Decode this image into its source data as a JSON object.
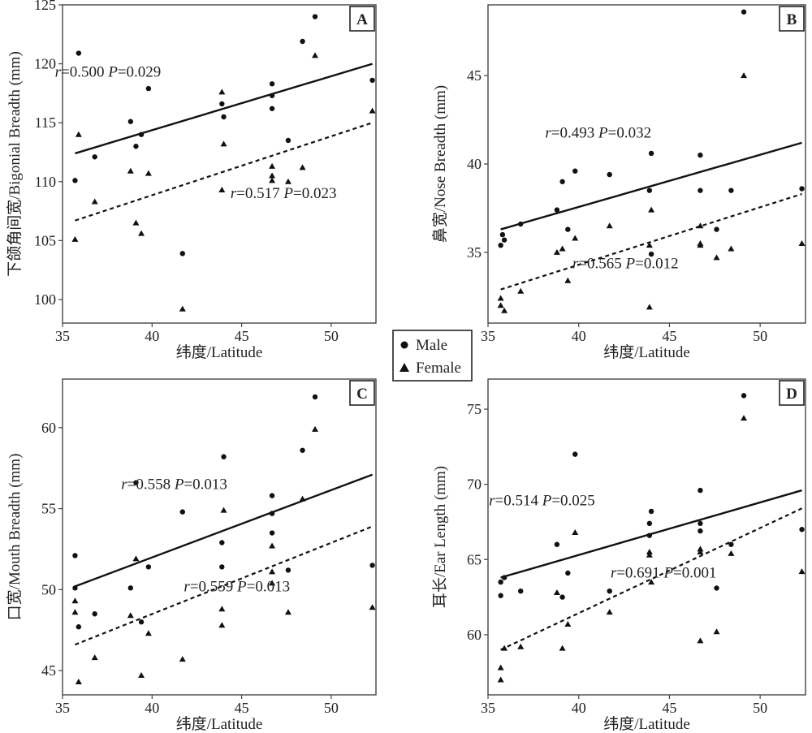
{
  "figure": {
    "legend": {
      "entries": [
        {
          "label": "Male",
          "marker": "circle"
        },
        {
          "label": "Female",
          "marker": "triangle"
        }
      ]
    }
  },
  "chart_data": [
    {
      "panel": "A",
      "type": "scatter",
      "xlabel": "纬度/Latitude",
      "ylabel": "下颌角间宽/Bigonial Breadth (mm)",
      "xlim": [
        35,
        52.5
      ],
      "ylim": [
        98,
        125
      ],
      "xticks": [
        35,
        40,
        45,
        50
      ],
      "yticks": [
        100,
        105,
        110,
        115,
        120,
        125
      ],
      "annotations": [
        {
          "series": "Male",
          "r": "0.500",
          "P": "0.029",
          "at_x": 40.5,
          "at_y": 118.9
        },
        {
          "series": "Female",
          "r": "0.517",
          "P": "0.023",
          "at_x": 50.3,
          "at_y": 108.6
        }
      ],
      "series": [
        {
          "name": "Male",
          "marker": "circle",
          "fit": {
            "x": [
              35.7,
              52.3
            ],
            "y": [
              112.4,
              120.0
            ],
            "style": "solid"
          },
          "points": [
            [
              35.7,
              110.1
            ],
            [
              35.9,
              120.9
            ],
            [
              36.8,
              112.1
            ],
            [
              38.8,
              115.1
            ],
            [
              39.1,
              113.0
            ],
            [
              39.4,
              114.0
            ],
            [
              39.8,
              117.9
            ],
            [
              41.7,
              103.9
            ],
            [
              43.9,
              116.6
            ],
            [
              44.0,
              115.5
            ],
            [
              46.7,
              118.3
            ],
            [
              46.7,
              117.3
            ],
            [
              46.7,
              116.2
            ],
            [
              47.6,
              113.5
            ],
            [
              48.4,
              121.9
            ],
            [
              49.1,
              124.0
            ],
            [
              52.3,
              118.6
            ]
          ]
        },
        {
          "name": "Female",
          "marker": "triangle",
          "fit": {
            "x": [
              35.7,
              52.3
            ],
            "y": [
              106.7,
              115.0
            ],
            "style": "dashed"
          },
          "points": [
            [
              35.7,
              105.1
            ],
            [
              35.9,
              114.0
            ],
            [
              36.8,
              108.3
            ],
            [
              38.8,
              110.9
            ],
            [
              39.1,
              106.5
            ],
            [
              39.4,
              105.6
            ],
            [
              39.8,
              110.7
            ],
            [
              41.7,
              99.2
            ],
            [
              43.9,
              117.6
            ],
            [
              43.9,
              109.3
            ],
            [
              44.0,
              113.2
            ],
            [
              46.7,
              111.3
            ],
            [
              46.7,
              110.5
            ],
            [
              46.7,
              110.1
            ],
            [
              47.6,
              110.0
            ],
            [
              48.4,
              111.2
            ],
            [
              49.1,
              120.7
            ],
            [
              52.3,
              116.0
            ]
          ]
        }
      ]
    },
    {
      "panel": "B",
      "type": "scatter",
      "xlabel": "纬度/Latitude",
      "ylabel": "鼻宽/Nose Breadth (mm)",
      "xlim": [
        35,
        52.5
      ],
      "ylim": [
        31,
        49
      ],
      "xticks": [
        35,
        40,
        45,
        50
      ],
      "yticks": [
        35,
        40,
        45
      ],
      "annotations": [
        {
          "series": "Male",
          "r": "0.493",
          "P": "0.032",
          "at_x": 44.0,
          "at_y": 41.5
        },
        {
          "series": "Female",
          "r": "0.565",
          "P": "0.012",
          "at_x": 45.5,
          "at_y": 34.1
        }
      ],
      "series": [
        {
          "name": "Male",
          "marker": "circle",
          "fit": {
            "x": [
              35.7,
              52.3
            ],
            "y": [
              36.3,
              41.2
            ],
            "style": "solid"
          },
          "points": [
            [
              35.7,
              35.4
            ],
            [
              35.8,
              36.0
            ],
            [
              35.9,
              35.7
            ],
            [
              36.8,
              36.6
            ],
            [
              38.8,
              37.4
            ],
            [
              39.1,
              39.0
            ],
            [
              39.4,
              36.3
            ],
            [
              39.8,
              39.6
            ],
            [
              41.7,
              39.4
            ],
            [
              43.9,
              38.5
            ],
            [
              44.0,
              34.9
            ],
            [
              44.0,
              40.6
            ],
            [
              46.7,
              40.5
            ],
            [
              46.7,
              38.5
            ],
            [
              47.6,
              36.3
            ],
            [
              48.4,
              38.5
            ],
            [
              49.1,
              48.6
            ],
            [
              52.3,
              38.6
            ]
          ]
        },
        {
          "name": "Female",
          "marker": "triangle",
          "fit": {
            "x": [
              35.7,
              52.3
            ],
            "y": [
              32.9,
              38.3
            ],
            "style": "dashed"
          },
          "points": [
            [
              35.7,
              32.4
            ],
            [
              35.7,
              32.0
            ],
            [
              35.9,
              31.7
            ],
            [
              36.8,
              32.8
            ],
            [
              38.8,
              35.0
            ],
            [
              39.1,
              35.2
            ],
            [
              39.4,
              33.4
            ],
            [
              39.8,
              35.8
            ],
            [
              41.7,
              36.5
            ],
            [
              43.9,
              35.4
            ],
            [
              43.9,
              31.9
            ],
            [
              44.0,
              37.4
            ],
            [
              46.7,
              36.5
            ],
            [
              46.7,
              35.5
            ],
            [
              46.7,
              35.4
            ],
            [
              47.6,
              34.7
            ],
            [
              48.4,
              35.2
            ],
            [
              49.1,
              45.0
            ],
            [
              52.3,
              35.5
            ]
          ]
        }
      ]
    },
    {
      "panel": "C",
      "type": "scatter",
      "xlabel": "纬度/Latitude",
      "ylabel": "口宽/Mouth Breadth (mm)",
      "xlim": [
        35,
        52.5
      ],
      "ylim": [
        43.5,
        63
      ],
      "xticks": [
        35,
        40,
        45,
        50
      ],
      "yticks": [
        45,
        50,
        55,
        60
      ],
      "annotations": [
        {
          "series": "Male",
          "r": "0.558",
          "P": "0.013",
          "at_x": 44.2,
          "at_y": 56.2
        },
        {
          "series": "Female",
          "r": "0.559",
          "P": "0.013",
          "at_x": 47.7,
          "at_y": 49.9
        }
      ],
      "series": [
        {
          "name": "Male",
          "marker": "circle",
          "fit": {
            "x": [
              35.7,
              52.3
            ],
            "y": [
              50.2,
              57.1
            ],
            "style": "solid"
          },
          "points": [
            [
              35.7,
              52.1
            ],
            [
              35.7,
              50.1
            ],
            [
              35.9,
              47.7
            ],
            [
              36.8,
              48.5
            ],
            [
              38.8,
              50.1
            ],
            [
              39.1,
              56.6
            ],
            [
              39.4,
              48.0
            ],
            [
              39.8,
              51.4
            ],
            [
              41.7,
              54.8
            ],
            [
              43.9,
              52.9
            ],
            [
              43.9,
              51.4
            ],
            [
              44.0,
              58.2
            ],
            [
              46.7,
              55.8
            ],
            [
              46.7,
              54.7
            ],
            [
              46.7,
              53.5
            ],
            [
              47.6,
              51.2
            ],
            [
              48.4,
              58.6
            ],
            [
              49.1,
              61.9
            ],
            [
              52.3,
              51.5
            ]
          ]
        },
        {
          "name": "Female",
          "marker": "triangle",
          "fit": {
            "x": [
              35.7,
              52.3
            ],
            "y": [
              46.6,
              53.9
            ],
            "style": "dashed"
          },
          "points": [
            [
              35.7,
              49.3
            ],
            [
              35.7,
              48.6
            ],
            [
              35.9,
              44.3
            ],
            [
              36.8,
              45.8
            ],
            [
              38.8,
              48.4
            ],
            [
              39.1,
              51.9
            ],
            [
              39.4,
              44.7
            ],
            [
              39.8,
              47.3
            ],
            [
              41.7,
              45.7
            ],
            [
              43.9,
              48.8
            ],
            [
              43.9,
              47.8
            ],
            [
              44.0,
              54.9
            ],
            [
              46.7,
              52.7
            ],
            [
              46.7,
              51.1
            ],
            [
              46.7,
              50.4
            ],
            [
              47.6,
              48.6
            ],
            [
              48.4,
              55.6
            ],
            [
              49.1,
              59.9
            ],
            [
              52.3,
              48.9
            ]
          ]
        }
      ]
    },
    {
      "panel": "D",
      "type": "scatter",
      "xlabel": "纬度/Latitude",
      "ylabel": "耳长/Ear Length (mm)",
      "xlim": [
        35,
        52.5
      ],
      "ylim": [
        56,
        77
      ],
      "xticks": [
        35,
        40,
        45,
        50
      ],
      "yticks": [
        60,
        65,
        70,
        75
      ],
      "annotations": [
        {
          "series": "Male",
          "r": "0.514",
          "P": "0.025",
          "at_x": 40.9,
          "at_y": 68.6
        },
        {
          "series": "Female",
          "r": "0.691",
          "P": "0.001",
          "at_x": 47.6,
          "at_y": 63.8
        }
      ],
      "series": [
        {
          "name": "Male",
          "marker": "circle",
          "fit": {
            "x": [
              35.7,
              52.3
            ],
            "y": [
              63.8,
              69.6
            ],
            "style": "solid"
          },
          "points": [
            [
              35.7,
              63.5
            ],
            [
              35.7,
              62.6
            ],
            [
              35.9,
              63.8
            ],
            [
              36.8,
              62.9
            ],
            [
              38.8,
              66.0
            ],
            [
              39.1,
              62.5
            ],
            [
              39.4,
              64.1
            ],
            [
              39.8,
              72.0
            ],
            [
              41.7,
              62.9
            ],
            [
              43.9,
              67.4
            ],
            [
              43.9,
              66.6
            ],
            [
              44.0,
              68.2
            ],
            [
              46.7,
              69.6
            ],
            [
              46.7,
              67.4
            ],
            [
              46.7,
              66.9
            ],
            [
              47.6,
              63.1
            ],
            [
              48.4,
              66.0
            ],
            [
              49.1,
              75.9
            ],
            [
              52.3,
              67.0
            ]
          ]
        },
        {
          "name": "Female",
          "marker": "triangle",
          "fit": {
            "x": [
              35.7,
              52.3
            ],
            "y": [
              59.0,
              68.4
            ],
            "style": "dashed"
          },
          "points": [
            [
              35.7,
              57.8
            ],
            [
              35.7,
              57.0
            ],
            [
              35.9,
              59.1
            ],
            [
              36.8,
              59.2
            ],
            [
              38.8,
              62.8
            ],
            [
              39.1,
              59.1
            ],
            [
              39.4,
              60.7
            ],
            [
              39.8,
              66.8
            ],
            [
              41.7,
              61.5
            ],
            [
              43.9,
              65.5
            ],
            [
              43.9,
              65.3
            ],
            [
              44.0,
              63.5
            ],
            [
              46.7,
              65.7
            ],
            [
              46.7,
              65.5
            ],
            [
              46.7,
              59.6
            ],
            [
              47.6,
              60.2
            ],
            [
              48.4,
              65.4
            ],
            [
              49.1,
              74.4
            ],
            [
              52.3,
              64.2
            ]
          ]
        }
      ]
    }
  ]
}
